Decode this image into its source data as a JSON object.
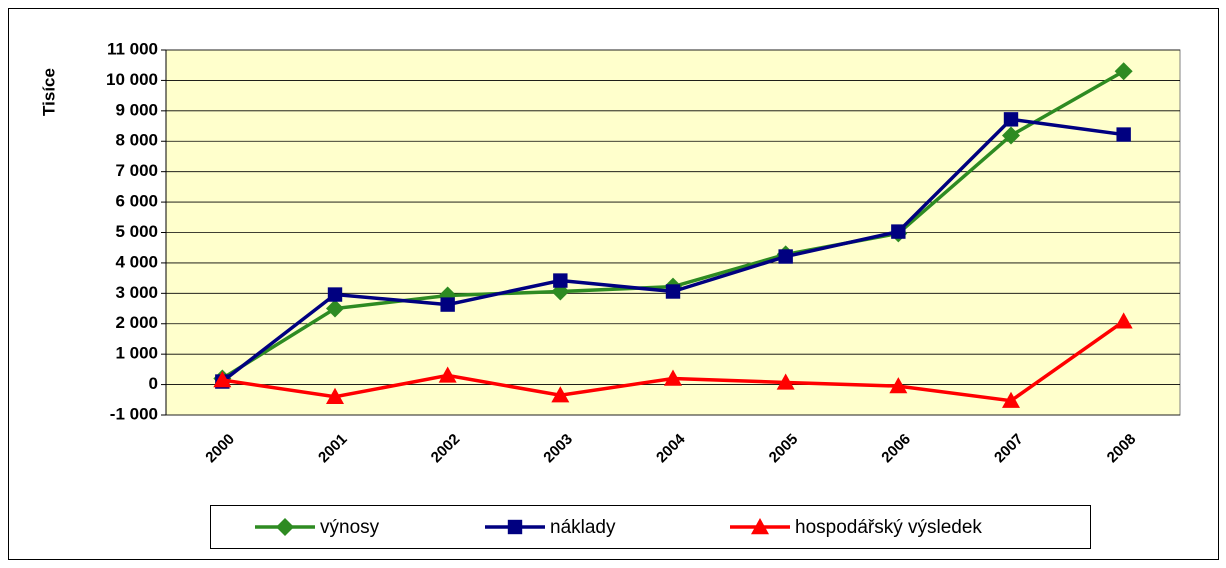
{
  "chart_data": {
    "type": "line",
    "y_label": "Tisíce",
    "categories": [
      "2000",
      "2001",
      "2002",
      "2003",
      "2004",
      "2005",
      "2006",
      "2007",
      "2008"
    ],
    "series": [
      {
        "name": "výnosy",
        "color": "#2e8b22",
        "marker": "diamond",
        "values": [
          200,
          2500,
          2930,
          3060,
          3220,
          4280,
          4970,
          8190,
          10300
        ]
      },
      {
        "name": "náklady",
        "color": "#000080",
        "marker": "square",
        "values": [
          100,
          2960,
          2630,
          3420,
          3060,
          4210,
          5030,
          8720,
          8220
        ]
      },
      {
        "name": "hospodářský výsledek",
        "color": "#ff0000",
        "marker": "triangle",
        "values": [
          150,
          -400,
          300,
          -350,
          200,
          70,
          -50,
          -530,
          2080
        ]
      }
    ],
    "ylim": [
      -1000,
      11000
    ],
    "yticks": [
      {
        "value": -1000,
        "label": "-1 000"
      },
      0,
      {
        "value": 1000,
        "label": "1 000"
      },
      {
        "value": 2000,
        "label": "2 000"
      },
      {
        "value": 3000,
        "label": "3 000"
      },
      {
        "value": 4000,
        "label": "4 000"
      },
      {
        "value": 5000,
        "label": "5 000"
      },
      {
        "value": 6000,
        "label": "6 000"
      },
      {
        "value": 7000,
        "label": "7 000"
      },
      {
        "value": 8000,
        "label": "8 000"
      },
      {
        "value": 9000,
        "label": "9 000"
      },
      {
        "value": 10000,
        "label": "10 000"
      },
      {
        "value": 11000,
        "label": "11 000"
      }
    ],
    "grid": true,
    "legend": "bottom"
  }
}
